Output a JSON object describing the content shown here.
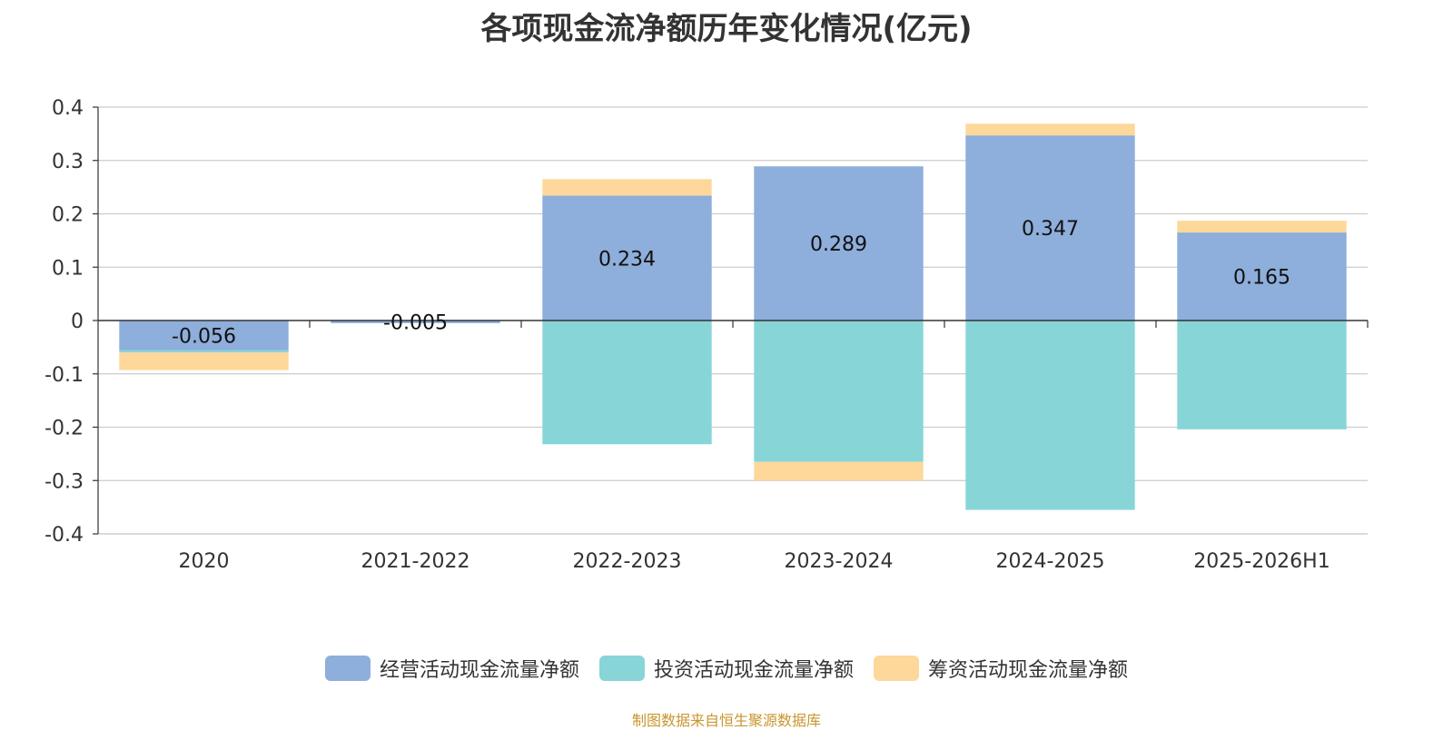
{
  "chart_data": {
    "type": "bar",
    "stacked": true,
    "title": "各项现金流净额历年变化情况(亿元)",
    "categories": [
      "2020",
      "2021-2022",
      "2022-2023",
      "2023-2024",
      "2024-2025",
      "2025-2026H1"
    ],
    "series": [
      {
        "name": "经营活动现金流量净额",
        "color": "#8eaedb",
        "values": [
          -0.056,
          -0.005,
          0.234,
          0.289,
          0.347,
          0.165
        ]
      },
      {
        "name": "投资活动现金流量净额",
        "color": "#88d5d8",
        "values": [
          -0.004,
          0.0,
          -0.232,
          -0.265,
          -0.355,
          -0.204
        ]
      },
      {
        "name": "筹资活动现金流量净额",
        "color": "#fdd89a",
        "values": [
          -0.033,
          0.0,
          0.031,
          -0.035,
          0.022,
          0.022
        ]
      }
    ],
    "data_labels": [
      "-0.056",
      "-0.005",
      "0.234",
      "0.289",
      "0.347",
      "0.165"
    ],
    "yticks": [
      "0.4",
      "0.3",
      "0.2",
      "0.1",
      "0",
      "-0.1",
      "-0.2",
      "-0.3",
      "-0.4"
    ],
    "ylim": [
      -0.4,
      0.4
    ],
    "xlabel": "",
    "ylabel": "",
    "grid": true,
    "legend_position": "bottom"
  },
  "source": "制图数据来自恒生聚源数据库"
}
